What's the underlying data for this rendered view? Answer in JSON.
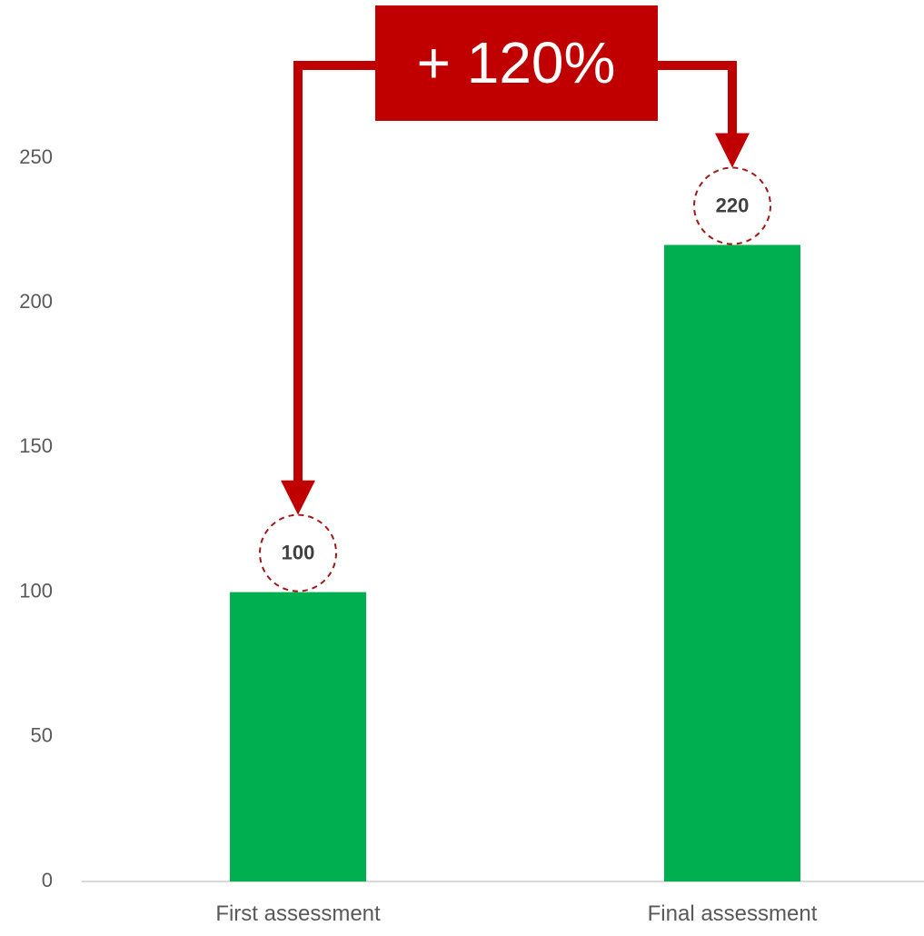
{
  "chart_data": {
    "type": "bar",
    "categories": [
      "First assessment",
      "Final assessment"
    ],
    "values": [
      100,
      220
    ],
    "data_labels": [
      "100",
      "220"
    ],
    "y_ticks": [
      "0",
      "50",
      "100",
      "150",
      "200",
      "250"
    ],
    "ylim": [
      0,
      250
    ],
    "gridlines": false,
    "legend": "none",
    "annotation": {
      "text": "+ 120%",
      "from_category": "First assessment",
      "to_category": "Final assessment"
    }
  },
  "colors": {
    "bar": "#00b050",
    "annotation": "#c00000",
    "axis": "#d9d9d9",
    "label_circle": "#a01818"
  }
}
